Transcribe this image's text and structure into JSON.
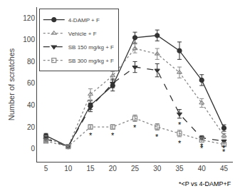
{
  "chart_data": {
    "type": "line",
    "x": [
      5,
      10,
      15,
      20,
      25,
      30,
      35,
      40,
      45
    ],
    "series": [
      {
        "name": "4-DAMP + F",
        "color": "#333333",
        "marker": "circle",
        "line_style": "solid",
        "values": [
          12,
          2,
          40,
          58,
          102,
          104,
          90,
          63,
          19
        ],
        "errors": [
          2,
          1,
          4,
          5,
          5,
          5,
          8,
          5,
          3
        ]
      },
      {
        "name": "Vehicle + F",
        "color": "#888888",
        "marker": "triangle-up-open",
        "line_style": "dot",
        "values": [
          10,
          2,
          50,
          67,
          92,
          87,
          70,
          42,
          12
        ],
        "errors": [
          2,
          1,
          5,
          4,
          4,
          5,
          5,
          4,
          2
        ]
      },
      {
        "name": "SB 150 mg/kg + F",
        "color": "#333333",
        "marker": "triangle-down",
        "line_style": "dash",
        "values": [
          9,
          2,
          38,
          60,
          75,
          72,
          32,
          10,
          7
        ],
        "errors": [
          2,
          1,
          4,
          4,
          5,
          6,
          4,
          2,
          1
        ]
      },
      {
        "name": "SB 300 mg/kg + F",
        "color": "#888888",
        "marker": "square-open",
        "line_style": "dot",
        "values": [
          7,
          2,
          20,
          20,
          28,
          20,
          14,
          8,
          4
        ],
        "errors": [
          1,
          1,
          2,
          2,
          3,
          3,
          3,
          2,
          1
        ]
      }
    ],
    "annotations": [
      {
        "text": "*",
        "series": "SB 300 mg/kg + F",
        "x": 15
      },
      {
        "text": "*",
        "series": "SB 300 mg/kg + F",
        "x": 20
      },
      {
        "text": "*",
        "series": "SB 300 mg/kg + F",
        "x": 25
      },
      {
        "text": "*",
        "series": "SB 300 mg/kg + F",
        "x": 30
      },
      {
        "text": "*",
        "series": "SB 300 mg/kg + F",
        "x": 35
      },
      {
        "text": "*",
        "series": "SB 300 mg/kg + F",
        "x": 40
      },
      {
        "text": "*",
        "series": "SB 300 mg/kg + F",
        "x": 45
      },
      {
        "text": "*",
        "series": "SB 150 mg/kg + F",
        "x": 35
      },
      {
        "text": "*",
        "series": "SB 150 mg/kg + F",
        "x": 40
      },
      {
        "text": "*",
        "series": "SB 150 mg/kg + F",
        "x": 45
      },
      {
        "text": "*<P vs 4-DAMP+F"
      }
    ],
    "ylabel": "Number of scratches",
    "xlim": [
      3,
      47
    ],
    "xticks": [
      5,
      10,
      15,
      20,
      25,
      30,
      35,
      40,
      45
    ],
    "ylim": [
      -12,
      130
    ],
    "yticks": [
      0,
      20,
      40,
      60,
      80,
      100,
      120
    ],
    "legend": "upper left",
    "grid": false
  }
}
